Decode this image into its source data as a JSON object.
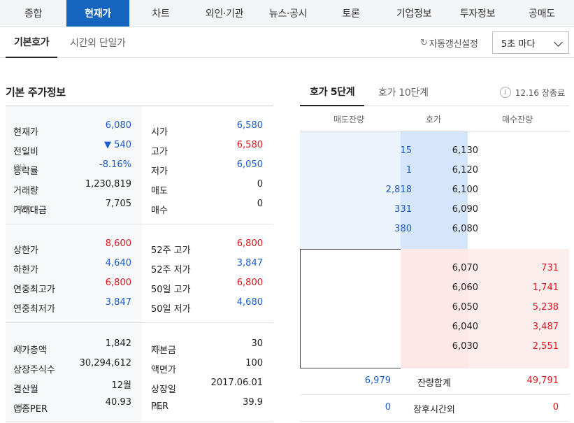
{
  "top_tabs": [
    "종합",
    "현재가",
    "차트",
    "외인·기관",
    "뉴스·공시",
    "토론",
    "기업정보",
    "투자정보",
    "공매도"
  ],
  "active_top_tab": "현재가",
  "sub_tabs": [
    "기본호가",
    "시간외 단일가"
  ],
  "auto_refresh_label": "자동갱신설정",
  "refresh_interval": "5초 마다",
  "basic_info": {
    "title": "기본 주가정보",
    "group1": [
      {
        "l1": "현재가",
        "l1s": "",
        "v1": "6,080",
        "c1": "blue",
        "l2": "시가",
        "l2s": "",
        "v2": "6,580",
        "c2": "blue"
      },
      {
        "l1": "전일비",
        "l1s": "",
        "v1": "▼ 540",
        "c1": "blue",
        "l2": "고가",
        "l2s": "",
        "v2": "6,580",
        "c2": "red"
      },
      {
        "l1": "등락률",
        "l1s": "(%)",
        "v1": "-8.16%",
        "c1": "blue",
        "l2": "저가",
        "l2s": "",
        "v2": "6,050",
        "c2": "blue"
      },
      {
        "l1": "거래량",
        "l1s": "",
        "v1": "1,230,819",
        "c1": "dark",
        "l2": "매도",
        "l2s": "",
        "v2": "0",
        "c2": "dark"
      },
      {
        "l1": "거래대금",
        "l1s": "(백만)",
        "v1": "7,705",
        "c1": "dark",
        "l2": "매수",
        "l2s": "",
        "v2": "0",
        "c2": "dark"
      }
    ],
    "group2": [
      {
        "l1": "상한가",
        "l1s": "",
        "v1": "8,600",
        "c1": "red",
        "l2": "52주 고가",
        "l2s": "",
        "v2": "6,800",
        "c2": "red"
      },
      {
        "l1": "하한가",
        "l1s": "",
        "v1": "4,640",
        "c1": "blue",
        "l2": "52주 저가",
        "l2s": "",
        "v2": "3,847",
        "c2": "blue"
      },
      {
        "l1": "연중최고가",
        "l1s": "",
        "v1": "6,800",
        "c1": "red",
        "l2": "50일 고가",
        "l2s": "",
        "v2": "6,800",
        "c2": "red"
      },
      {
        "l1": "연중최저가",
        "l1s": "",
        "v1": "3,847",
        "c1": "blue",
        "l2": "50일 저가",
        "l2s": "",
        "v2": "4,680",
        "c2": "blue"
      }
    ],
    "group3": [
      {
        "l1": "시가총액",
        "l1s": "(억)",
        "v1": "1,842",
        "c1": "dark",
        "l2": "자본금",
        "l2s": "(억)",
        "v2": "30",
        "c2": "dark"
      },
      {
        "l1": "상장주식수",
        "l1s": "",
        "v1": "30,294,612",
        "c1": "dark",
        "l2": "액면가",
        "l2s": "",
        "v2": "100",
        "c2": "dark"
      },
      {
        "l1": "결산월",
        "l1s": "",
        "v1": "12월",
        "c1": "dark",
        "l2": "상장일",
        "l2s": "",
        "v2": "2017.06.01",
        "c2": "dark"
      },
      {
        "l1": "업종PER",
        "l1s": "(배)",
        "v1": "40.93",
        "c1": "dark",
        "l2": "PER",
        "l2s": "(배)",
        "v2": "39.9",
        "c2": "dark"
      }
    ]
  },
  "orderbook": {
    "tabs": [
      "호가 5단계",
      "호가 10단계"
    ],
    "time_label": "12.16 장종료",
    "headers": {
      "ask": "매도잔량",
      "price": "호가",
      "bid": "매수잔량"
    },
    "asks": [
      {
        "qty": "15",
        "price": "6,130"
      },
      {
        "qty": "1",
        "price": "6,120"
      },
      {
        "qty": "2,818",
        "price": "6,100"
      },
      {
        "qty": "331",
        "price": "6,090"
      },
      {
        "qty": "380",
        "price": "6,080"
      }
    ],
    "bids": [
      {
        "price": "6,070",
        "qty": "731"
      },
      {
        "price": "6,060",
        "qty": "1,741"
      },
      {
        "price": "6,050",
        "qty": "5,238"
      },
      {
        "price": "6,040",
        "qty": "3,487"
      },
      {
        "price": "6,030",
        "qty": "2,551"
      }
    ],
    "total": {
      "ask": "6,979",
      "label": "잔량합계",
      "bid": "49,791"
    },
    "after_hours": {
      "ask": "0",
      "label": "장후시간외",
      "bid": "0"
    }
  },
  "colors": {
    "accent": "#1565c0",
    "up": "#e0141e",
    "down": "#1c5bcc"
  }
}
